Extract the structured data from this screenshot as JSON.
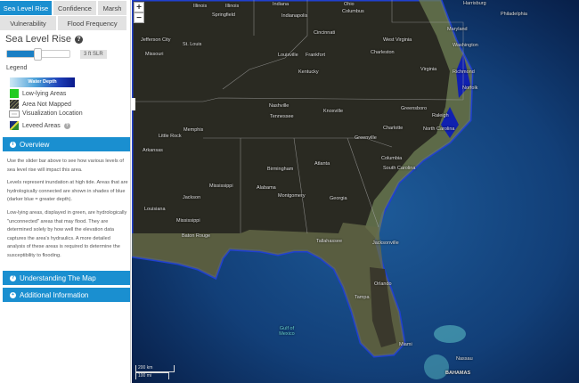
{
  "tabs": [
    {
      "label": "Sea Level Rise",
      "active": true
    },
    {
      "label": "Confidence"
    },
    {
      "label": "Marsh"
    },
    {
      "label": "Vulnerability"
    },
    {
      "label": "Flood Frequency"
    }
  ],
  "panel": {
    "title": "Sea Level Rise",
    "slider_level": "3 ft SLR",
    "slider_fraction": 0.5,
    "legend_label": "Legend",
    "water_depth": "Water Depth",
    "legend_items": [
      {
        "label": "Low-lying Areas",
        "color": "#22cc22"
      },
      {
        "label": "Area Not Mapped"
      },
      {
        "label": "Visualization Location"
      },
      {
        "label": "Leveed Areas"
      }
    ]
  },
  "overview": {
    "header": "Overview",
    "paragraphs": [
      "Use the slider bar above to see how various levels of sea level rise will impact this area.",
      "Levels represent inundation at high tide. Areas that are hydrologically connected are shown in shades of blue (darker blue = greater depth).",
      "Low-lying areas, displayed in green, are hydrologically \"unconnected\" areas that may flood. They are determined solely by how well the elevation data captures the area's hydraulics. A more detailed analysis of these areas is required to determine the susceptibility to flooding."
    ]
  },
  "understanding": {
    "header": "Understanding The Map"
  },
  "additional": {
    "header": "Additional Information"
  },
  "map": {
    "zoom_in": "+",
    "zoom_out": "−",
    "scale_km": "200 km",
    "scale_mi": "100 mi",
    "labels": [
      "Illinois",
      "Illinois",
      "Springfield",
      "Indiana",
      "Indianapolis",
      "Ohio",
      "Columbus",
      "Cincinnati",
      "Jefferson City",
      "Missouri",
      "St. Louis",
      "Louisville",
      "Frankfort",
      "Kentucky",
      "West Virginia",
      "Charleston",
      "Harrisburg",
      "Philadelphia",
      "Maryland",
      "Washington",
      "Virginia",
      "Richmond",
      "Norfolk",
      "Nashville",
      "Tennessee",
      "Knoxville",
      "Greensboro",
      "Raleigh",
      "Charlotte",
      "North Carolina",
      "Memphis",
      "Little Rock",
      "Arkansas",
      "Greenville",
      "Atlanta",
      "Birmingham",
      "Columbia",
      "South Carolina",
      "Mississippi",
      "Alabama",
      "Montgomery",
      "Georgia",
      "Jackson",
      "Louisiana",
      "Mississippi",
      "Baton Rouge",
      "Tallahassee",
      "Jacksonville",
      "Orlando",
      "Tampa",
      "Miami",
      "Gulf of Mexico",
      "Nassau",
      "BAHAMAS"
    ]
  }
}
